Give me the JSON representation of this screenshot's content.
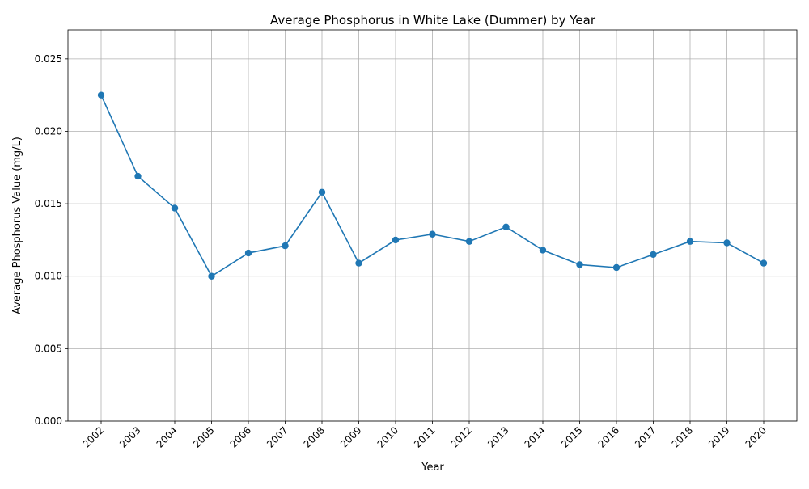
{
  "chart_data": {
    "type": "line",
    "title": "Average Phosphorus in White Lake (Dummer) by Year",
    "xlabel": "Year",
    "ylabel": "Average Phosphorus Value (mg/L)",
    "categories": [
      "2002",
      "2003",
      "2004",
      "2005",
      "2006",
      "2007",
      "2008",
      "2009",
      "2010",
      "2011",
      "2012",
      "2013",
      "2014",
      "2015",
      "2016",
      "2017",
      "2018",
      "2019",
      "2020"
    ],
    "series": [
      {
        "values": [
          0.0225,
          0.0169,
          0.0147,
          0.01,
          0.0116,
          0.0121,
          0.0158,
          0.0109,
          0.0125,
          0.0129,
          0.0124,
          0.0134,
          0.0118,
          0.0108,
          0.0106,
          0.0115,
          0.0124,
          0.0123,
          0.0109
        ],
        "color": "#1f77b4"
      }
    ],
    "ylim": [
      0,
      0.027
    ],
    "yticks": [
      0.0,
      0.005,
      0.01,
      0.015,
      0.02,
      0.025
    ],
    "ytick_labels": [
      "0.000",
      "0.005",
      "0.010",
      "0.015",
      "0.020",
      "0.025"
    ],
    "grid": true,
    "marker": "circle"
  }
}
